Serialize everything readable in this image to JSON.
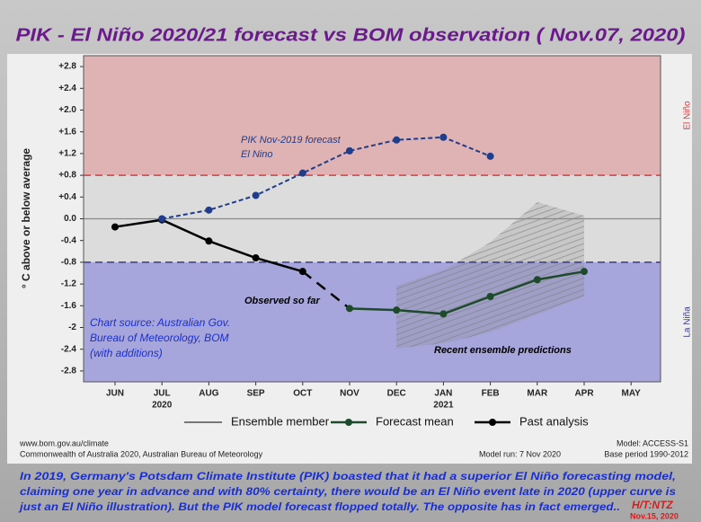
{
  "chart_data": {
    "type": "line",
    "title": "PIK - El Niño  2020/21 forecast vs BOM observation ( Nov.07, 2020)",
    "y_label": "° C above or below average",
    "categories": [
      "JUN",
      "JUL",
      "AUG",
      "SEP",
      "OCT",
      "NOV",
      "DEC",
      "JAN",
      "FEB",
      "MAR",
      "APR",
      "MAY"
    ],
    "year_labels": [
      {
        "category": 1,
        "label": "2020"
      },
      {
        "category": 7,
        "label": "2021"
      }
    ],
    "ylim": [
      -3.0,
      3.0
    ],
    "yticks": [
      {
        "value": 2.8,
        "label": "+2.8"
      },
      {
        "value": 2.4,
        "label": "+2.4"
      },
      {
        "value": 2.0,
        "label": "+2.0"
      },
      {
        "value": 1.6,
        "label": "+1.6"
      },
      {
        "value": 1.2,
        "label": "+1.2"
      },
      {
        "value": 0.8,
        "label": "+0.8"
      },
      {
        "value": 0.4,
        "label": "+0.4"
      },
      {
        "value": 0,
        "label": "0.0"
      },
      -0.4,
      -0.8,
      -1.2,
      -1.6,
      -2.0,
      -2.4,
      -2.8
    ],
    "thresholds": [
      {
        "value": 0.8,
        "label": "El Niño",
        "color": "#d04040",
        "band": "#dfb2b4"
      },
      {
        "value": -0.8,
        "label": "La Niña",
        "color": "#3a3a8a",
        "band": "#a7a6dc"
      }
    ],
    "series": [
      {
        "name": "Forecast mean",
        "color": "#1d4a2a",
        "values": [
          null,
          null,
          null,
          null,
          null,
          -1.65,
          -1.68,
          -1.75,
          -1.43,
          -1.12,
          -0.97,
          null
        ]
      },
      {
        "name": "Past analysis",
        "color": "#000000",
        "values": [
          -0.15,
          -0.02,
          -0.41,
          -0.72,
          -0.97,
          null,
          null,
          null,
          null,
          null,
          null,
          null
        ]
      },
      {
        "color": "#1f3d8a",
        "dashed": true,
        "values": [
          null,
          0,
          0.16,
          0.43,
          0.84,
          1.25,
          1.45,
          1.5,
          1.15,
          null,
          null,
          null
        ]
      }
    ],
    "ensemble": {
      "name": "Ensemble member",
      "color": "#777777"
    },
    "annotations": [
      "PIK Nov-2019 forecast",
      "El Nino",
      "Observed so far",
      "Recent ensemble predictions"
    ],
    "source_note": [
      "Chart source: Australian Gov.",
      "Bureau of Meteorology, BOM",
      "(with additions)"
    ],
    "footer": {
      "left": [
        "www.bom.gov.au/climate",
        "Commonwealth of Australia 2020, Australian Bureau of Meteorology"
      ],
      "model_run": "Model run: 7 Nov 2020",
      "right": [
        "Model: ACCESS-S1",
        "Base period 1990-2012"
      ]
    },
    "caption": [
      "In 2019, Germany's Potsdam Climate Institute (PIK) boasted that it had a superior El Niño forecasting model,",
      "claiming one year in advance and with 80% certainty, there would be an El Niño event late in 2020 (upper curve is",
      "just an El Niño illustration). But the PIK model forecast flopped totally. The opposite has in fact emerged.."
    ],
    "credit": "H/T:NTZ",
    "credit_date": "Nov.15, 2020"
  }
}
